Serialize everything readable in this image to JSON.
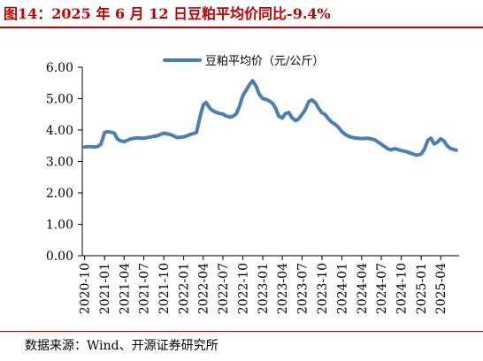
{
  "figure": {
    "title": "图14：2025 年 6 月 12 日豆粕平均价同比-9.4%",
    "source": "数据来源：Wind、开源证券研究所"
  },
  "colors": {
    "accent": "#c00000",
    "series": "#4a7ebb",
    "axis": "#000000"
  },
  "chart_data": {
    "type": "line",
    "title": "",
    "xlabel": "",
    "ylabel": "",
    "ylim": [
      0,
      6
    ],
    "yticks": [
      "0.00",
      "1.00",
      "2.00",
      "3.00",
      "4.00",
      "5.00",
      "6.00"
    ],
    "xticks": [
      "2020-10",
      "2021-01",
      "2021-04",
      "2021-07",
      "2021-10",
      "2022-01",
      "2022-04",
      "2022-07",
      "2022-10",
      "2023-01",
      "2023-04",
      "2023-07",
      "2023-10",
      "2024-01",
      "2024-04",
      "2024-07",
      "2024-10",
      "2025-01",
      "2025-04"
    ],
    "grid": false,
    "legend_position": "top-center",
    "series": [
      {
        "name": "豆粕平均价（元/公斤）",
        "x": [
          "2020-10-01",
          "2020-10-15",
          "2020-11-01",
          "2020-11-15",
          "2020-12-01",
          "2020-12-15",
          "2021-01-01",
          "2021-01-15",
          "2021-02-01",
          "2021-02-15",
          "2021-03-01",
          "2021-03-15",
          "2021-04-01",
          "2021-05-01",
          "2021-06-01",
          "2021-07-01",
          "2021-08-01",
          "2021-09-01",
          "2021-10-01",
          "2021-11-01",
          "2021-12-01",
          "2022-01-01",
          "2022-02-01",
          "2022-03-01",
          "2022-03-15",
          "2022-04-01",
          "2022-04-15",
          "2022-05-01",
          "2022-05-15",
          "2022-06-01",
          "2022-06-15",
          "2022-07-01",
          "2022-07-15",
          "2022-08-01",
          "2022-08-15",
          "2022-09-01",
          "2022-09-15",
          "2022-10-01",
          "2022-10-15",
          "2022-11-01",
          "2022-11-15",
          "2022-12-01",
          "2022-12-15",
          "2023-01-01",
          "2023-01-15",
          "2023-02-01",
          "2023-02-15",
          "2023-03-01",
          "2023-03-15",
          "2023-04-01",
          "2023-04-15",
          "2023-05-01",
          "2023-05-15",
          "2023-06-01",
          "2023-06-15",
          "2023-07-01",
          "2023-07-15",
          "2023-08-01",
          "2023-08-15",
          "2023-09-01",
          "2023-09-15",
          "2023-10-01",
          "2023-10-15",
          "2023-11-01",
          "2023-11-15",
          "2023-12-01",
          "2023-12-15",
          "2024-01-01",
          "2024-01-15",
          "2024-02-01",
          "2024-03-01",
          "2024-04-01",
          "2024-05-01",
          "2024-06-01",
          "2024-07-01",
          "2024-07-15",
          "2024-08-01",
          "2024-08-15",
          "2024-09-01",
          "2024-10-01",
          "2024-11-01",
          "2024-11-15",
          "2024-12-01",
          "2024-12-15",
          "2025-01-01",
          "2025-01-15",
          "2025-02-01",
          "2025-02-15",
          "2025-03-01",
          "2025-03-15",
          "2025-04-01",
          "2025-04-15",
          "2025-05-01",
          "2025-05-15",
          "2025-06-01",
          "2025-06-12"
        ],
        "values": [
          3.46,
          3.47,
          3.47,
          3.46,
          3.48,
          3.55,
          3.92,
          3.95,
          3.93,
          3.9,
          3.72,
          3.66,
          3.63,
          3.72,
          3.75,
          3.74,
          3.78,
          3.82,
          3.9,
          3.86,
          3.76,
          3.78,
          3.86,
          3.92,
          4.35,
          4.8,
          4.88,
          4.7,
          4.62,
          4.56,
          4.53,
          4.51,
          4.45,
          4.41,
          4.43,
          4.52,
          4.75,
          5.1,
          5.25,
          5.45,
          5.57,
          5.4,
          5.15,
          5.0,
          4.98,
          4.92,
          4.85,
          4.7,
          4.45,
          4.38,
          4.52,
          4.56,
          4.4,
          4.3,
          4.35,
          4.5,
          4.63,
          4.9,
          4.96,
          4.87,
          4.7,
          4.55,
          4.5,
          4.35,
          4.25,
          4.18,
          4.1,
          3.95,
          3.87,
          3.8,
          3.75,
          3.73,
          3.74,
          3.69,
          3.55,
          3.48,
          3.4,
          3.37,
          3.41,
          3.35,
          3.3,
          3.26,
          3.22,
          3.2,
          3.24,
          3.38,
          3.68,
          3.74,
          3.56,
          3.6,
          3.72,
          3.66,
          3.5,
          3.42,
          3.38,
          3.36
        ]
      }
    ]
  }
}
